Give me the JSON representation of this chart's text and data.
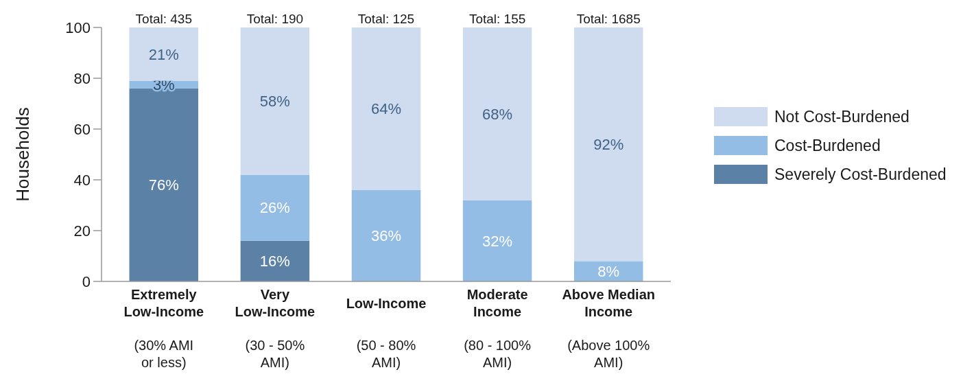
{
  "chart_data": {
    "type": "bar",
    "stacked": true,
    "ylabel": "Households",
    "ylim": [
      0,
      100
    ],
    "yticks": [
      0,
      20,
      40,
      60,
      80,
      100
    ],
    "grid": false,
    "legend": "right",
    "categories": [
      "Extremely\nLow-Income\n(30% AMI\nor less)",
      "Very\nLow-Income\n(30 - 50%\nAMI)",
      "Low-Income\n(50 - 80%\nAMI)",
      "Moderate\nIncome\n(80 - 100%\nAMI)",
      "Above Median\nIncome\n(Above 100%\nAMI)"
    ],
    "series": [
      {
        "name": "Severely Cost-Burdened",
        "color": "#5b82a6",
        "values": [
          76,
          16,
          0,
          0,
          0
        ],
        "value_labels": [
          "76%",
          "16%",
          null,
          null,
          null
        ]
      },
      {
        "name": "Cost-Burdened",
        "color": "#93bde5",
        "values": [
          3,
          26,
          36,
          32,
          8
        ],
        "value_labels": [
          "3%",
          "26%",
          "36%",
          "32%",
          "8%"
        ]
      },
      {
        "name": "Not Cost-Burdened",
        "color": "#cfdbee",
        "values": [
          21,
          58,
          64,
          68,
          92
        ],
        "value_labels": [
          "21%",
          "58%",
          "64%",
          "68%",
          "92%"
        ]
      }
    ],
    "annotations": [
      {
        "text": "Total: 435",
        "x": "Extremely\nLow-Income\n(30% AMI\nor less)",
        "y": 100
      },
      {
        "text": "Total: 190",
        "x": "Very\nLow-Income\n(30 - 50%\nAMI)",
        "y": 100
      },
      {
        "text": "Total: 125",
        "x": "Low-Income\n(50 - 80%\nAMI)",
        "y": 100
      },
      {
        "text": "Total: 155",
        "x": "Moderate\nIncome\n(80 - 100%\nAMI)",
        "y": 100
      },
      {
        "text": "Total: 1685",
        "x": "Above Median\nIncome\n(Above 100%\nAMI)",
        "y": 100
      }
    ]
  }
}
